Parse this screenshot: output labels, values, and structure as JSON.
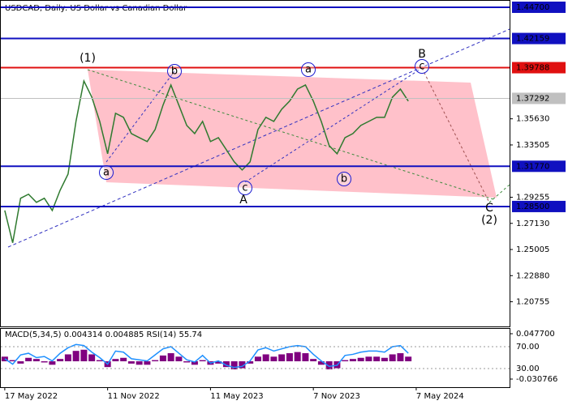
{
  "chart_data": [
    {
      "type": "line",
      "title": "USDCAD, Daily:  US Dollar vs Canadian Dollar",
      "color": "#2f7a2f",
      "values": [
        1.2818,
        1.2555,
        1.2917,
        1.295,
        1.2884,
        1.2917,
        1.2818,
        1.2983,
        1.3114,
        1.3542,
        1.3871,
        1.3739,
        1.3542,
        1.3279,
        1.3608,
        1.3575,
        1.3443,
        1.341,
        1.3378,
        1.3476,
        1.3674,
        1.3838,
        1.3674,
        1.3509,
        1.3443,
        1.3542,
        1.3378,
        1.341,
        1.3312,
        1.3213,
        1.3147,
        1.3213,
        1.3476,
        1.3575,
        1.3542,
        1.3641,
        1.3707,
        1.3805,
        1.3838,
        1.3707,
        1.3542,
        1.3345,
        1.3279,
        1.341,
        1.3443,
        1.3509,
        1.3542,
        1.3575,
        1.3575,
        1.3739,
        1.3805,
        1.3707
      ],
      "xlim": [
        -0.5,
        63.8
      ],
      "xticks": [
        {
          "value": 0,
          "label": "17 May 2022"
        },
        {
          "value": 13,
          "label": "11 Nov 2022"
        },
        {
          "value": 26,
          "label": "11 May 2023"
        },
        {
          "value": 39,
          "label": "7 Nov 2023"
        },
        {
          "value": 52,
          "label": "7 May 2024"
        }
      ],
      "ylim": [
        1.1875,
        1.4529
      ],
      "yticks": [
        {
          "value": 1.3563,
          "label": "1.35630"
        },
        {
          "value": 1.33505,
          "label": "1.33505"
        },
        {
          "value": 1.29255,
          "label": "1.29255"
        },
        {
          "value": 1.2713,
          "label": "1.27130"
        },
        {
          "value": 1.25005,
          "label": "1.25005"
        },
        {
          "value": 1.2288,
          "label": "1.22880"
        },
        {
          "value": 1.20755,
          "label": "1.20755"
        }
      ],
      "levels": [
        {
          "value": 1.447,
          "label": "1.44700",
          "color": "#1010c0"
        },
        {
          "value": 1.42159,
          "label": "1.42159",
          "color": "#1010c0"
        },
        {
          "value": 1.39788,
          "label": "1.39788",
          "color": "#e01010"
        },
        {
          "value": 1.37292,
          "label": "1.37292",
          "color": "#c0c0c0"
        },
        {
          "value": 1.3177,
          "label": "1.31770",
          "color": "#1010c0"
        },
        {
          "value": 1.285,
          "label": "1.28500",
          "color": "#1010c0"
        }
      ],
      "annotations": [
        "(1)",
        "b",
        "a",
        "c",
        "A",
        "a",
        "b",
        "B",
        "c",
        "C",
        "(2)"
      ]
    },
    {
      "type": "indicator",
      "title": "MACD(5,34,5) 0.004314 0.004885 RSI(14) 55.74",
      "macd_color": "#800080",
      "rsi_color": "#1e90ff",
      "macd": [
        0.008,
        0.002,
        -0.004,
        0.006,
        0.004,
        -0.002,
        -0.006,
        0.004,
        0.012,
        0.018,
        0.02,
        0.012,
        0.002,
        -0.01,
        0.004,
        0.006,
        -0.004,
        -0.006,
        -0.006,
        0.002,
        0.01,
        0.014,
        0.008,
        -0.002,
        -0.006,
        0.002,
        -0.006,
        -0.004,
        -0.01,
        -0.014,
        -0.012,
        -0.004,
        0.008,
        0.012,
        0.008,
        0.012,
        0.014,
        0.016,
        0.014,
        0.004,
        -0.006,
        -0.014,
        -0.012,
        0.002,
        0.004,
        0.006,
        0.008,
        0.008,
        0.006,
        0.012,
        0.014,
        0.008
      ],
      "rsi": [
        48,
        38,
        55,
        58,
        50,
        52,
        44,
        58,
        68,
        74,
        72,
        60,
        50,
        38,
        62,
        60,
        48,
        46,
        44,
        55,
        66,
        70,
        58,
        46,
        42,
        54,
        40,
        44,
        36,
        32,
        34,
        44,
        64,
        68,
        62,
        66,
        70,
        72,
        70,
        56,
        44,
        34,
        36,
        54,
        56,
        60,
        62,
        62,
        60,
        70,
        72,
        58
      ],
      "macd_ylim": [
        -0.0448,
        0.0575
      ],
      "macd_ticks": [
        {
          "value": 0.0477,
          "label": "0.047700"
        },
        {
          "value": -0.030766,
          "label": "-0.030766"
        }
      ],
      "rsi_ylim": [
        -4,
        104
      ],
      "rsi_ticks": [
        {
          "value": 70,
          "label": "70.00"
        },
        {
          "value": 30,
          "label": "30.00"
        }
      ]
    }
  ]
}
